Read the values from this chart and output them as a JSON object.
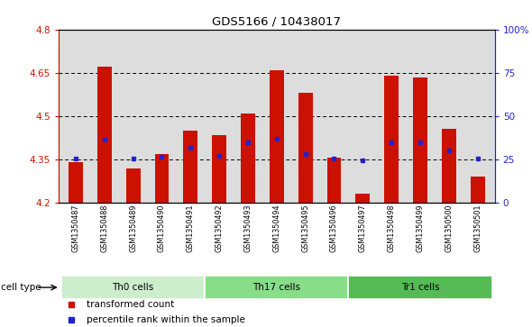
{
  "title": "GDS5166 / 10438017",
  "samples": [
    "GSM1350487",
    "GSM1350488",
    "GSM1350489",
    "GSM1350490",
    "GSM1350491",
    "GSM1350492",
    "GSM1350493",
    "GSM1350494",
    "GSM1350495",
    "GSM1350496",
    "GSM1350497",
    "GSM1350498",
    "GSM1350499",
    "GSM1350500",
    "GSM1350501"
  ],
  "bar_values": [
    4.34,
    4.67,
    4.32,
    4.37,
    4.45,
    4.435,
    4.51,
    4.66,
    4.58,
    4.355,
    4.23,
    4.64,
    4.635,
    4.455,
    4.29
  ],
  "percentile_values": [
    4.352,
    4.42,
    4.352,
    4.358,
    4.39,
    4.362,
    4.41,
    4.422,
    4.368,
    4.352,
    4.348,
    4.41,
    4.408,
    4.382,
    4.352
  ],
  "bar_bottom": 4.2,
  "ylim_left": [
    4.2,
    4.8
  ],
  "ylim_right": [
    0,
    100
  ],
  "yticks_left": [
    4.2,
    4.35,
    4.5,
    4.65,
    4.8
  ],
  "yticks_right": [
    0,
    25,
    50,
    75,
    100
  ],
  "ytick_labels_left": [
    "4.2",
    "4.35",
    "4.5",
    "4.65",
    "4.8"
  ],
  "ytick_labels_right": [
    "0",
    "25",
    "50",
    "75",
    "100%"
  ],
  "hlines": [
    4.35,
    4.5,
    4.65
  ],
  "bar_color": "#cc1100",
  "dot_color": "#2222cc",
  "cell_groups": [
    {
      "label": "Th0 cells",
      "start": 0,
      "end": 4,
      "color": "#cceecc"
    },
    {
      "label": "Th17 cells",
      "start": 5,
      "end": 9,
      "color": "#88dd88"
    },
    {
      "label": "Tr1 cells",
      "start": 10,
      "end": 14,
      "color": "#55bb55"
    }
  ],
  "legend_items": [
    {
      "label": "transformed count",
      "color": "#cc1100"
    },
    {
      "label": "percentile rank within the sample",
      "color": "#2222cc"
    }
  ],
  "cell_type_label": "cell type",
  "plot_bg_color": "#dddddd",
  "bar_width": 0.5,
  "axis_left_color": "#cc1100",
  "axis_right_color": "#2222cc"
}
